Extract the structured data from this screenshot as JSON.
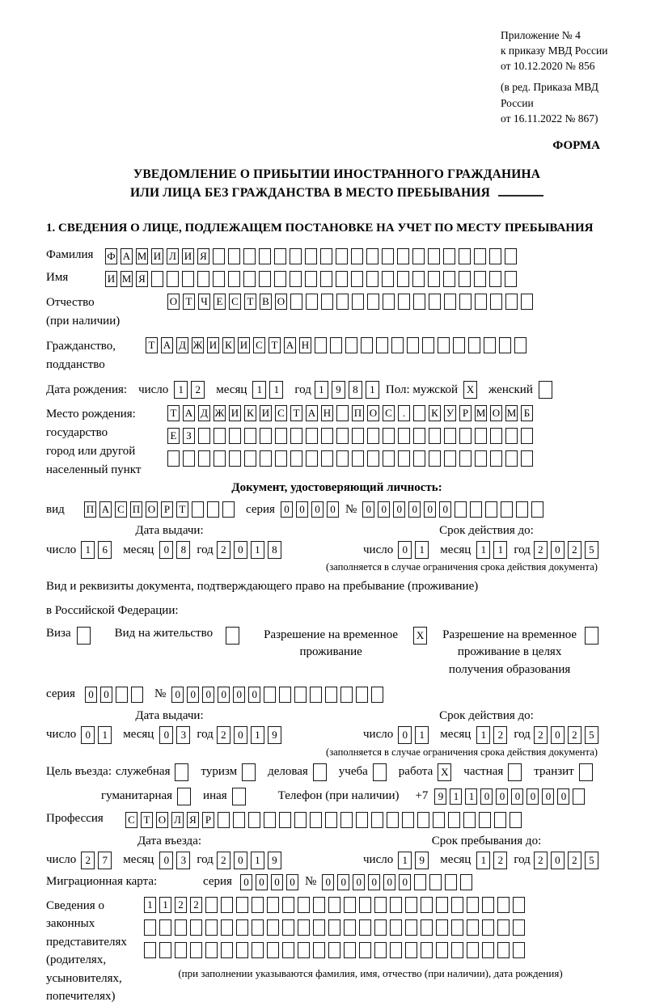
{
  "header": {
    "appendix_line1": "Приложение № 4",
    "appendix_line2": "к приказу МВД России",
    "appendix_line3": "от 10.12.2020 № 856",
    "revision_line1": "(в ред. Приказа МВД России",
    "revision_line2": "от 16.11.2022 № 867)",
    "form_label": "ФОРМА"
  },
  "title": {
    "line1": "УВЕДОМЛЕНИЕ О ПРИБЫТИИ ИНОСТРАННОГО ГРАЖДАНИНА",
    "line2": "ИЛИ ЛИЦА БЕЗ ГРАЖДАНСТВА В МЕСТО ПРЕБЫВАНИЯ"
  },
  "section1_heading": "1. СВЕДЕНИЯ О ЛИЦЕ, ПОДЛЕЖАЩЕМ ПОСТАНОВКЕ НА УЧЕТ ПО МЕСТУ ПРЕБЫВАНИЯ",
  "labels": {
    "day": "число",
    "month": "месяц",
    "year": "год",
    "series": "серия",
    "number": "№",
    "issue_date": "Дата выдачи:",
    "valid_until": "Срок действия до:",
    "validity_note": "(заполняется в случае ограничения срока действия документа)"
  },
  "person": {
    "surname_label": "Фамилия",
    "surname": {
      "value": "ФАМИЛИЯ",
      "count": 27
    },
    "name_label": "Имя",
    "name": {
      "value": "ИМЯ",
      "count": 27
    },
    "patronymic_label1": "Отчество",
    "patronymic_label2": "(при наличии)",
    "patronymic": {
      "value": "ОТЧЕСТВО",
      "count": 24
    },
    "citizenship_label1": "Гражданство,",
    "citizenship_label2": "подданство",
    "citizenship": {
      "value": "ТАДЖИКИСТАН",
      "count": 25
    },
    "birth_date_label": "Дата рождения:",
    "birth_day": {
      "value": "12",
      "count": 2
    },
    "birth_month": {
      "value": "11",
      "count": 2
    },
    "birth_year": {
      "value": "1981",
      "count": 4
    },
    "sex_label": "Пол: мужской",
    "sex_male": {
      "value": "X",
      "count": 1
    },
    "sex_female_label": "женский",
    "sex_female": {
      "value": "",
      "count": 1
    },
    "birth_place_label1": "Место рождения:",
    "birth_place_label2": "государство",
    "birth_place_label3": "город или другой",
    "birth_place_label4": "населенный пункт",
    "birth_place_row1": {
      "value": "ТАДЖИКИСТАН ПОС. КУРМОМБ",
      "count": 24
    },
    "birth_place_row2": {
      "value": "ЕЗ",
      "count": 24
    },
    "birth_place_row3": {
      "value": "",
      "count": 24
    }
  },
  "identity_doc": {
    "heading": "Документ, удостоверяющий личность:",
    "kind_label": "вид",
    "kind": {
      "value": "ПАСПОРТ",
      "count": 10
    },
    "series": {
      "value": "0000",
      "count": 4
    },
    "number": {
      "value": "000000",
      "count": 12
    },
    "issue_day": {
      "value": "16",
      "count": 2
    },
    "issue_month": {
      "value": "08",
      "count": 2
    },
    "issue_year": {
      "value": "2018",
      "count": 4
    },
    "valid_day": {
      "value": "01",
      "count": 2
    },
    "valid_month": {
      "value": "11",
      "count": 2
    },
    "valid_year": {
      "value": "2025",
      "count": 4
    }
  },
  "stay_doc": {
    "intro_line1": "Вид и реквизиты документа, подтверждающего право на пребывание (проживание)",
    "intro_line2": "в Российской Федерации:",
    "visa_label": "Виза",
    "visa": {
      "value": "",
      "count": 1
    },
    "residence_label": "Вид на жительство",
    "residence": {
      "value": "",
      "count": 1
    },
    "temp_permit_label": "Разрешение на временное проживание",
    "temp_permit": {
      "value": "X",
      "count": 1
    },
    "temp_permit_edu_label": "Разрешение на временное проживание в целях получения образования",
    "temp_permit_edu": {
      "value": "",
      "count": 1
    },
    "series": {
      "value": "00",
      "count": 4
    },
    "number": {
      "value": "000000",
      "count": 14
    },
    "issue_day": {
      "value": "01",
      "count": 2
    },
    "issue_month": {
      "value": "03",
      "count": 2
    },
    "issue_year": {
      "value": "2019",
      "count": 4
    },
    "valid_day": {
      "value": "01",
      "count": 2
    },
    "valid_month": {
      "value": "12",
      "count": 2
    },
    "valid_year": {
      "value": "2025",
      "count": 4
    }
  },
  "trip": {
    "purpose_label": "Цель въезда:",
    "purposes": [
      {
        "label": "служебная",
        "cell": {
          "value": "",
          "count": 1
        }
      },
      {
        "label": "туризм",
        "cell": {
          "value": "",
          "count": 1
        }
      },
      {
        "label": "деловая",
        "cell": {
          "value": "",
          "count": 1
        }
      },
      {
        "label": "учеба",
        "cell": {
          "value": "",
          "count": 1
        }
      },
      {
        "label": "работа",
        "cell": {
          "value": "X",
          "count": 1
        }
      },
      {
        "label": "частная",
        "cell": {
          "value": "",
          "count": 1
        }
      },
      {
        "label": "транзит",
        "cell": {
          "value": "",
          "count": 1
        }
      },
      {
        "label": "гуманитарная",
        "cell": {
          "value": "",
          "count": 1
        }
      },
      {
        "label": "иная",
        "cell": {
          "value": "",
          "count": 1
        }
      }
    ],
    "phone_label": "Телефон (при наличии)",
    "phone_prefix": "+7",
    "phone": {
      "value": "911000000",
      "count": 10
    },
    "profession_label": "Профессия",
    "profession": {
      "value": "СТОЛЯР",
      "count": 26
    },
    "entry_date_label": "Дата въезда:",
    "entry_day": {
      "value": "27",
      "count": 2
    },
    "entry_month": {
      "value": "03",
      "count": 2
    },
    "entry_year": {
      "value": "2019",
      "count": 4
    },
    "stay_until_label": "Срок пребывания до:",
    "stay_day": {
      "value": "19",
      "count": 2
    },
    "stay_month": {
      "value": "12",
      "count": 2
    },
    "stay_year": {
      "value": "2025",
      "count": 4
    },
    "migration_card_label": "Миграционная карта:",
    "migration_series": {
      "value": "0000",
      "count": 4
    },
    "migration_number": {
      "value": "000000",
      "count": 10
    }
  },
  "representatives": {
    "label_line1": "Сведения о",
    "label_line2": "законных",
    "label_line3": "представителях",
    "label_line4": "(родителях,",
    "label_line5": "усыновителях,",
    "label_line6": "попечителях)",
    "row1": {
      "value": "1122",
      "count": 25
    },
    "row2": {
      "value": "",
      "count": 25
    },
    "row3": {
      "value": "",
      "count": 25
    },
    "note": "(при заполнении указываются фамилия, имя, отчество (при наличии), дата рождения)"
  }
}
